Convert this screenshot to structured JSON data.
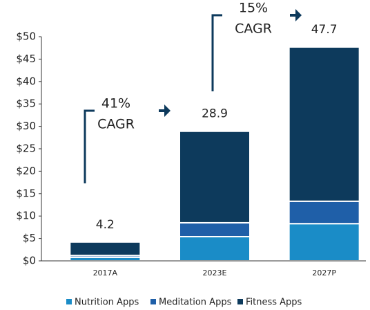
{
  "chart_data": {
    "type": "stacked_bar",
    "categories": [
      "2017A",
      "2023E",
      "2027P"
    ],
    "series": [
      {
        "name": "Nutrition Apps",
        "color": "#1a8cc7",
        "values": [
          0.8,
          5.4,
          8.3
        ]
      },
      {
        "name": "Meditation Apps",
        "color": "#1f5fa8",
        "values": [
          0.4,
          3.1,
          5.0
        ]
      },
      {
        "name": "Fitness Apps",
        "color": "#0d3a5c",
        "values": [
          3.0,
          20.4,
          34.4
        ]
      }
    ],
    "total_labels": [
      "4.2",
      "28.9",
      "47.7"
    ],
    "annotations": [
      {
        "lines": [
          "41%",
          "CAGR"
        ]
      },
      {
        "lines": [
          "15%",
          "CAGR"
        ]
      }
    ],
    "ylim": [
      0,
      50
    ],
    "yticks": [
      {
        "value": 0,
        "label": "$0"
      },
      {
        "value": 5,
        "label": "$5"
      },
      {
        "value": 10,
        "label": "$10"
      },
      {
        "value": 15,
        "label": "$15"
      },
      {
        "value": 20,
        "label": "$20"
      },
      {
        "value": 25,
        "label": "$25"
      },
      {
        "value": 30,
        "label": "$30"
      },
      {
        "value": 35,
        "label": "$35"
      },
      {
        "value": 40,
        "label": "$40"
      },
      {
        "value": 45,
        "label": "$45"
      },
      {
        "value": 50,
        "label": "$50"
      }
    ],
    "legend": "bottom"
  }
}
